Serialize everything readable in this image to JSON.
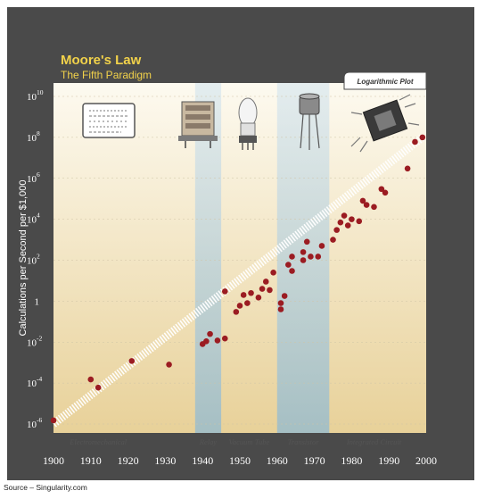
{
  "chart_data": {
    "type": "scatter",
    "title": "Moore's Law",
    "subtitle": "The Fifth Paradigm",
    "ylabel": "Calculations per Second per $1,000",
    "badge": "Logarithmic Plot",
    "y_scale": "log",
    "ylim": [
      1e-06,
      10000000000.0
    ],
    "xlim": [
      1900,
      2000
    ],
    "x_ticks": [
      "1900",
      "1910",
      "1920",
      "1930",
      "1940",
      "1950",
      "1960",
      "1970",
      "1980",
      "1990",
      "2000"
    ],
    "y_ticks": [
      {
        "value": 1e-06,
        "base": "10",
        "exp": "-6"
      },
      {
        "value": 0.0001,
        "base": "10",
        "exp": "-4"
      },
      {
        "value": 0.01,
        "base": "10",
        "exp": "-2"
      },
      {
        "value": 1,
        "base": "1",
        "exp": ""
      },
      {
        "value": 100.0,
        "base": "10",
        "exp": "2"
      },
      {
        "value": 10000.0,
        "base": "10",
        "exp": "4"
      },
      {
        "value": 1000000.0,
        "base": "10",
        "exp": "6"
      },
      {
        "value": 100000000.0,
        "base": "10",
        "exp": "8"
      },
      {
        "value": 10000000000.0,
        "base": "10",
        "exp": "10"
      }
    ],
    "paradigms": [
      {
        "label": "Electromechanical",
        "start": 1900,
        "end": 1938
      },
      {
        "label": "Relay",
        "start": 1938,
        "end": 1945
      },
      {
        "label": "Vacuum Tube",
        "start": 1945,
        "end": 1960
      },
      {
        "label": "Transistor",
        "start": 1960,
        "end": 1974
      },
      {
        "label": "Integrated Circuit",
        "start": 1974,
        "end": 2000
      }
    ],
    "trend": {
      "start": [
        1900,
        1e-06
      ],
      "end": [
        1999,
        100000000.0
      ]
    },
    "points": [
      {
        "x": 1900,
        "y": 1.5e-06
      },
      {
        "x": 1910,
        "y": 0.00015
      },
      {
        "x": 1912,
        "y": 6e-05
      },
      {
        "x": 1921,
        "y": 0.0012
      },
      {
        "x": 1931,
        "y": 0.0008
      },
      {
        "x": 1940,
        "y": 0.008
      },
      {
        "x": 1941,
        "y": 0.011
      },
      {
        "x": 1942,
        "y": 0.025
      },
      {
        "x": 1944,
        "y": 0.012
      },
      {
        "x": 1946,
        "y": 0.015
      },
      {
        "x": 1946,
        "y": 3
      },
      {
        "x": 1949,
        "y": 0.3
      },
      {
        "x": 1950,
        "y": 0.6
      },
      {
        "x": 1951,
        "y": 2
      },
      {
        "x": 1952,
        "y": 0.8
      },
      {
        "x": 1953,
        "y": 2.5
      },
      {
        "x": 1955,
        "y": 1.5
      },
      {
        "x": 1956,
        "y": 4
      },
      {
        "x": 1957,
        "y": 9
      },
      {
        "x": 1958,
        "y": 3.5
      },
      {
        "x": 1959,
        "y": 25
      },
      {
        "x": 1961,
        "y": 0.4
      },
      {
        "x": 1961,
        "y": 0.8
      },
      {
        "x": 1962,
        "y": 1.8
      },
      {
        "x": 1963,
        "y": 60
      },
      {
        "x": 1964,
        "y": 150
      },
      {
        "x": 1964,
        "y": 30
      },
      {
        "x": 1967,
        "y": 100
      },
      {
        "x": 1967,
        "y": 250
      },
      {
        "x": 1968,
        "y": 800
      },
      {
        "x": 1969,
        "y": 150
      },
      {
        "x": 1971,
        "y": 150
      },
      {
        "x": 1972,
        "y": 500
      },
      {
        "x": 1975,
        "y": 1000
      },
      {
        "x": 1976,
        "y": 3000
      },
      {
        "x": 1977,
        "y": 7000
      },
      {
        "x": 1978,
        "y": 15000
      },
      {
        "x": 1979,
        "y": 5000
      },
      {
        "x": 1980,
        "y": 10000
      },
      {
        "x": 1982,
        "y": 8000
      },
      {
        "x": 1983,
        "y": 80000
      },
      {
        "x": 1984,
        "y": 50000
      },
      {
        "x": 1986,
        "y": 40000
      },
      {
        "x": 1988,
        "y": 300000
      },
      {
        "x": 1989,
        "y": 200000
      },
      {
        "x": 1995,
        "y": 3000000
      },
      {
        "x": 1997,
        "y": 60000000
      },
      {
        "x": 1999,
        "y": 100000000
      }
    ],
    "colors": {
      "background": "#4a4a4a",
      "plot_top": "#fbf8ea",
      "plot_bottom": "#e9d29a",
      "band": "#9cc6dd",
      "point": "#9b1c22",
      "trend": "#ffffff",
      "title": "#f2d24a"
    }
  },
  "source": "Source – Singularity.com"
}
